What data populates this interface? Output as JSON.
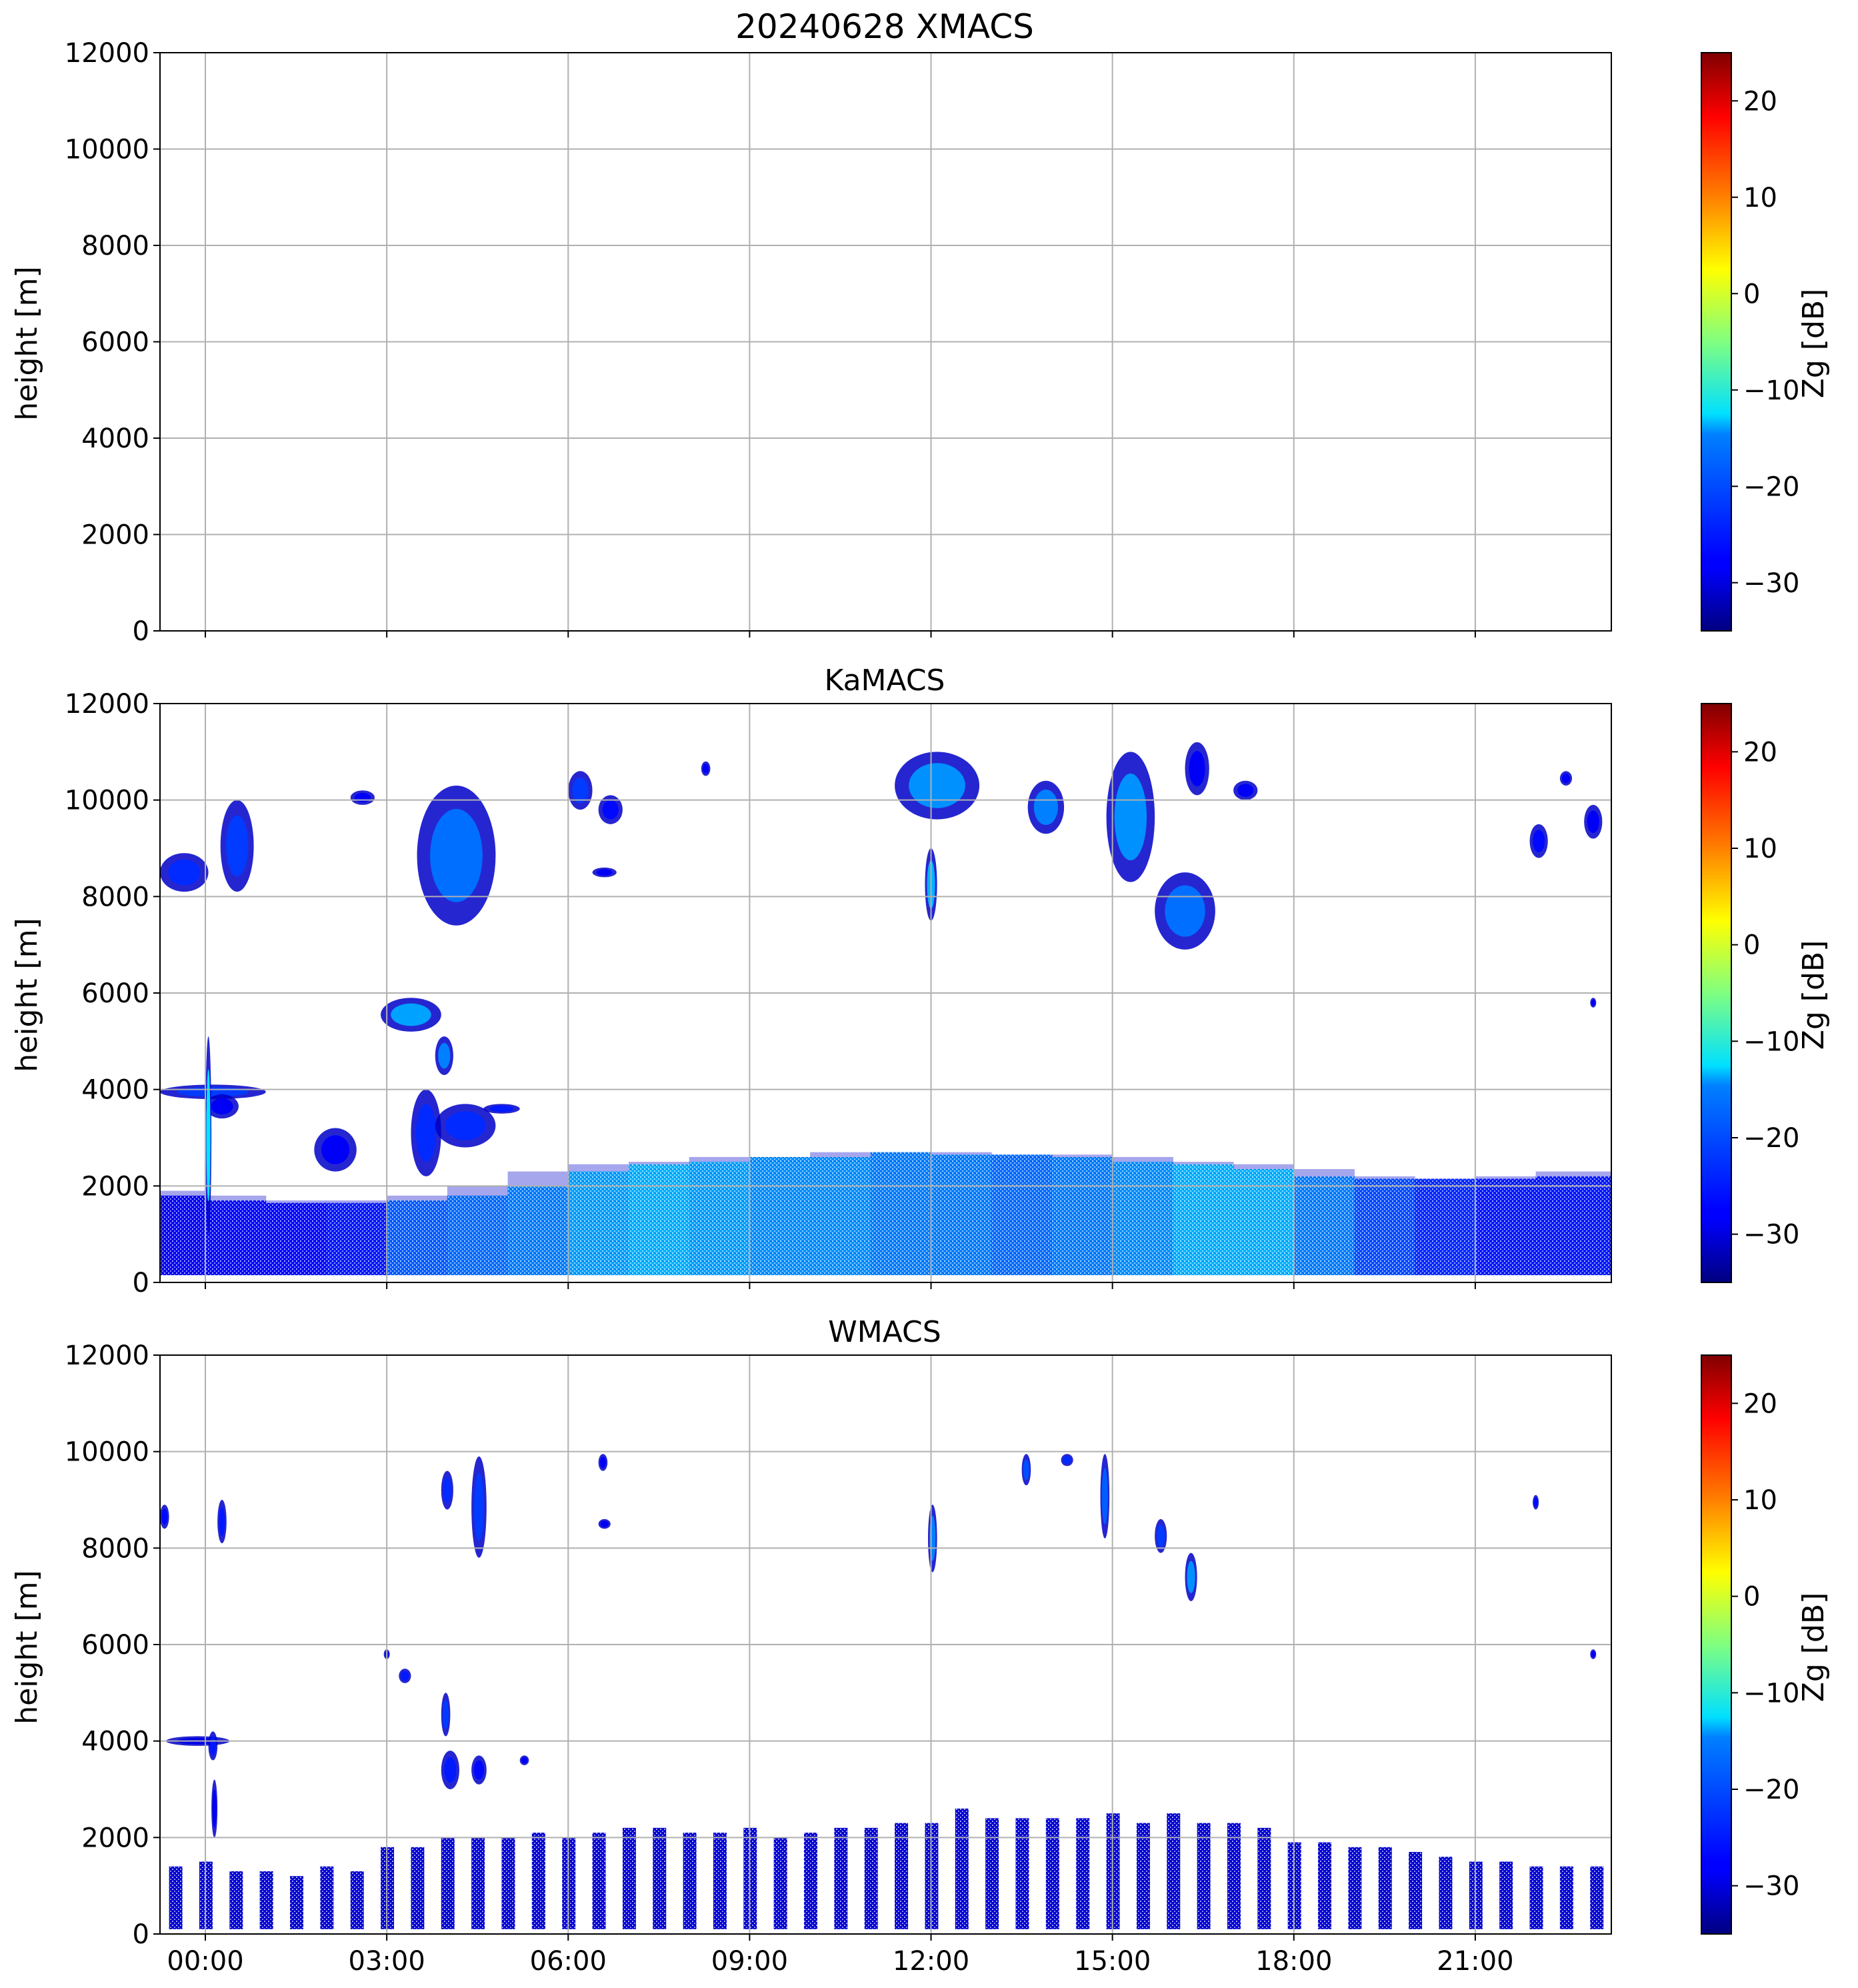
{
  "figure": {
    "title": "20240628 XMACS"
  },
  "chart_data": [
    {
      "type": "heatmap",
      "panel": "XMACS",
      "title": "",
      "xlabel": "",
      "ylabel": "height [m]",
      "x_ticks": [
        "00:00",
        "03:00",
        "06:00",
        "09:00",
        "12:00",
        "15:00",
        "18:00",
        "21:00"
      ],
      "x_tick_labels_visible": false,
      "xlim_hours": [
        -0.75,
        23.25
      ],
      "y_ticks": [
        0,
        2000,
        4000,
        6000,
        8000,
        10000,
        12000
      ],
      "ylim": [
        0,
        12000
      ],
      "grid": true,
      "colorbar": {
        "label": "Zg [dB]",
        "range": [
          -35,
          25
        ],
        "ticks": [
          -30,
          -20,
          -10,
          0,
          10,
          20
        ],
        "colormap": "jet"
      },
      "echoes": []
    },
    {
      "type": "heatmap",
      "panel": "KaMACS",
      "title": "KaMACS",
      "xlabel": "",
      "ylabel": "height [m]",
      "x_ticks": [
        "00:00",
        "03:00",
        "06:00",
        "09:00",
        "12:00",
        "15:00",
        "18:00",
        "21:00"
      ],
      "x_tick_labels_visible": false,
      "xlim_hours": [
        -0.75,
        23.25
      ],
      "y_ticks": [
        0,
        2000,
        4000,
        6000,
        8000,
        10000,
        12000
      ],
      "ylim": [
        0,
        12000
      ],
      "grid": true,
      "colorbar": {
        "label": "Zg [dB]",
        "range": [
          -35,
          25
        ],
        "ticks": [
          -30,
          -20,
          -10,
          0,
          10,
          20
        ],
        "colormap": "jet"
      },
      "boundary_layer": {
        "t_hours": [
          -0.75,
          0,
          1,
          2,
          3,
          4,
          5,
          6,
          7,
          8,
          9,
          10,
          11,
          12,
          13,
          14,
          15,
          16,
          17,
          18,
          19,
          20,
          21,
          22,
          23.25
        ],
        "top_m": [
          1900,
          1800,
          1700,
          1650,
          1700,
          1800,
          2000,
          2300,
          2450,
          2500,
          2600,
          2600,
          2700,
          2700,
          2650,
          2650,
          2600,
          2500,
          2450,
          2350,
          2200,
          2150,
          2150,
          2200,
          2300
        ],
        "base_m": 150,
        "mean_dbz": [
          -28,
          -27,
          -27,
          -26,
          -22,
          -21,
          -20,
          -18,
          -17,
          -18,
          -19,
          -19,
          -20,
          -20,
          -21,
          -20,
          -19,
          -17,
          -17,
          -20,
          -23,
          -25,
          -26,
          -26,
          -26
        ]
      },
      "echoes": [
        {
          "t0": -0.75,
          "t1": 0.05,
          "h0": 8100,
          "h1": 8900,
          "dbz": -25
        },
        {
          "t0": 0.25,
          "t1": 0.8,
          "h0": 8100,
          "h1": 10000,
          "dbz": -24
        },
        {
          "t0": -0.75,
          "t1": 1.0,
          "h0": 3800,
          "h1": 4100,
          "dbz": -24
        },
        {
          "t0": 0.0,
          "t1": 0.55,
          "h0": 3400,
          "h1": 3900,
          "dbz": -28
        },
        {
          "t0": 0.0,
          "t1": 0.1,
          "h0": 1000,
          "h1": 5100,
          "dbz": -14
        },
        {
          "t0": 1.8,
          "t1": 2.5,
          "h0": 2300,
          "h1": 3200,
          "dbz": -28
        },
        {
          "t0": 2.4,
          "t1": 2.8,
          "h0": 9900,
          "h1": 10200,
          "dbz": -28
        },
        {
          "t0": 2.9,
          "t1": 3.9,
          "h0": 5200,
          "h1": 5900,
          "dbz": -18
        },
        {
          "t0": 3.4,
          "t1": 3.9,
          "h0": 2200,
          "h1": 4000,
          "dbz": -25
        },
        {
          "t0": 3.8,
          "t1": 4.1,
          "h0": 4300,
          "h1": 5100,
          "dbz": -20
        },
        {
          "t0": 3.8,
          "t1": 4.8,
          "h0": 2800,
          "h1": 3700,
          "dbz": -25
        },
        {
          "t0": 4.6,
          "t1": 5.2,
          "h0": 3500,
          "h1": 3700,
          "dbz": -26
        },
        {
          "t0": 3.5,
          "t1": 4.8,
          "h0": 7400,
          "h1": 10300,
          "dbz": -21
        },
        {
          "t0": 6.0,
          "t1": 6.4,
          "h0": 9800,
          "h1": 10600,
          "dbz": -24
        },
        {
          "t0": 6.5,
          "t1": 6.9,
          "h0": 9500,
          "h1": 10100,
          "dbz": -27
        },
        {
          "t0": 6.4,
          "t1": 6.8,
          "h0": 8400,
          "h1": 8600,
          "dbz": -28
        },
        {
          "t0": 8.2,
          "t1": 8.35,
          "h0": 10500,
          "h1": 10800,
          "dbz": -28
        },
        {
          "t0": 11.4,
          "t1": 12.8,
          "h0": 9600,
          "h1": 11000,
          "dbz": -19
        },
        {
          "t0": 11.9,
          "t1": 12.1,
          "h0": 7500,
          "h1": 9000,
          "dbz": -17
        },
        {
          "t0": 13.6,
          "t1": 14.2,
          "h0": 9300,
          "h1": 10400,
          "dbz": -20
        },
        {
          "t0": 14.9,
          "t1": 15.7,
          "h0": 8300,
          "h1": 11000,
          "dbz": -19
        },
        {
          "t0": 15.7,
          "t1": 16.7,
          "h0": 6900,
          "h1": 8500,
          "dbz": -21
        },
        {
          "t0": 16.2,
          "t1": 16.6,
          "h0": 10100,
          "h1": 11200,
          "dbz": -28
        },
        {
          "t0": 17.0,
          "t1": 17.4,
          "h0": 10000,
          "h1": 10400,
          "dbz": -28
        },
        {
          "t0": 21.9,
          "t1": 22.2,
          "h0": 8800,
          "h1": 9500,
          "dbz": -27
        },
        {
          "t0": 22.4,
          "t1": 22.6,
          "h0": 10300,
          "h1": 10600,
          "dbz": -28
        },
        {
          "t0": 22.8,
          "t1": 23.1,
          "h0": 9200,
          "h1": 9900,
          "dbz": -28
        },
        {
          "t0": 22.9,
          "t1": 23.0,
          "h0": 5700,
          "h1": 5900,
          "dbz": -28
        }
      ]
    },
    {
      "type": "heatmap",
      "panel": "WMACS",
      "title": "WMACS",
      "xlabel": "",
      "ylabel": "height [m]",
      "x_ticks": [
        "00:00",
        "03:00",
        "06:00",
        "09:00",
        "12:00",
        "15:00",
        "18:00",
        "21:00"
      ],
      "x_tick_labels_visible": true,
      "xlim_hours": [
        -0.75,
        23.25
      ],
      "y_ticks": [
        0,
        2000,
        4000,
        6000,
        8000,
        10000,
        12000
      ],
      "ylim": [
        0,
        12000
      ],
      "grid": true,
      "colorbar": {
        "label": "Zg [dB]",
        "range": [
          -35,
          25
        ],
        "ticks": [
          -30,
          -20,
          -10,
          0,
          10,
          20
        ],
        "colormap": "jet"
      },
      "stripes": {
        "t_hours": [
          -0.6,
          -0.1,
          0.4,
          0.9,
          1.4,
          1.9,
          2.4,
          2.9,
          3.4,
          3.9,
          4.4,
          4.9,
          5.4,
          5.9,
          6.4,
          6.9,
          7.4,
          7.9,
          8.4,
          8.9,
          9.4,
          9.9,
          10.4,
          10.9,
          11.4,
          11.9,
          12.4,
          12.9,
          13.4,
          13.9,
          14.4,
          14.9,
          15.4,
          15.9,
          16.4,
          16.9,
          17.4,
          17.9,
          18.4,
          18.9,
          19.4,
          19.9,
          20.4,
          20.9,
          21.4,
          21.9,
          22.4,
          22.9
        ],
        "top_m": [
          1400,
          1500,
          1300,
          1300,
          1200,
          1400,
          1300,
          1800,
          1800,
          2000,
          2000,
          2000,
          2100,
          2000,
          2100,
          2200,
          2200,
          2100,
          2100,
          2200,
          2000,
          2100,
          2200,
          2200,
          2300,
          2300,
          2600,
          2400,
          2400,
          2400,
          2400,
          2500,
          2300,
          2500,
          2300,
          2300,
          2200,
          1900,
          1900,
          1800,
          1800,
          1700,
          1600,
          1500,
          1500,
          1400,
          1400,
          1400
        ],
        "width_hours": 0.22,
        "base_m": 100,
        "mean_dbz": -30
      },
      "echoes": [
        {
          "t0": -0.75,
          "t1": -0.6,
          "h0": 8400,
          "h1": 8900,
          "dbz": -27
        },
        {
          "t0": 0.2,
          "t1": 0.35,
          "h0": 8100,
          "h1": 9000,
          "dbz": -26
        },
        {
          "t0": -0.65,
          "t1": 0.4,
          "h0": 3900,
          "h1": 4100,
          "dbz": -29
        },
        {
          "t0": 0.05,
          "t1": 0.2,
          "h0": 3600,
          "h1": 4200,
          "dbz": -26
        },
        {
          "t0": 0.1,
          "t1": 0.2,
          "h0": 2000,
          "h1": 3200,
          "dbz": -28
        },
        {
          "t0": 2.95,
          "t1": 3.05,
          "h0": 5700,
          "h1": 5900,
          "dbz": -27
        },
        {
          "t0": 3.2,
          "t1": 3.4,
          "h0": 5200,
          "h1": 5500,
          "dbz": -26
        },
        {
          "t0": 3.9,
          "t1": 4.05,
          "h0": 4100,
          "h1": 5000,
          "dbz": -24
        },
        {
          "t0": 3.9,
          "t1": 4.2,
          "h0": 3000,
          "h1": 3800,
          "dbz": -26
        },
        {
          "t0": 4.4,
          "t1": 4.65,
          "h0": 3100,
          "h1": 3700,
          "dbz": -27
        },
        {
          "t0": 3.9,
          "t1": 4.1,
          "h0": 8800,
          "h1": 9600,
          "dbz": -25
        },
        {
          "t0": 4.4,
          "t1": 4.65,
          "h0": 7800,
          "h1": 9900,
          "dbz": -24
        },
        {
          "t0": 5.2,
          "t1": 5.35,
          "h0": 3500,
          "h1": 3700,
          "dbz": -28
        },
        {
          "t0": 6.5,
          "t1": 6.65,
          "h0": 9600,
          "h1": 9950,
          "dbz": -28
        },
        {
          "t0": 6.5,
          "t1": 6.7,
          "h0": 8400,
          "h1": 8600,
          "dbz": -28
        },
        {
          "t0": 11.95,
          "t1": 12.1,
          "h0": 7500,
          "h1": 8900,
          "dbz": -20
        },
        {
          "t0": 13.5,
          "t1": 13.65,
          "h0": 9300,
          "h1": 9950,
          "dbz": -23
        },
        {
          "t0": 14.15,
          "t1": 14.35,
          "h0": 9700,
          "h1": 9950,
          "dbz": -25
        },
        {
          "t0": 14.8,
          "t1": 14.95,
          "h0": 8200,
          "h1": 9950,
          "dbz": -22
        },
        {
          "t0": 15.7,
          "t1": 15.9,
          "h0": 7900,
          "h1": 8600,
          "dbz": -24
        },
        {
          "t0": 16.2,
          "t1": 16.4,
          "h0": 6900,
          "h1": 7900,
          "dbz": -19
        },
        {
          "t0": 21.95,
          "t1": 22.05,
          "h0": 8800,
          "h1": 9100,
          "dbz": -27
        },
        {
          "t0": 22.9,
          "t1": 23.0,
          "h0": 5700,
          "h1": 5900,
          "dbz": -28
        }
      ]
    }
  ]
}
